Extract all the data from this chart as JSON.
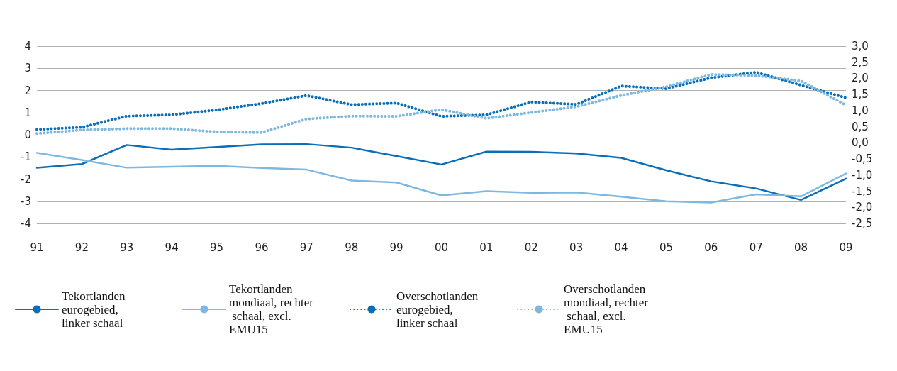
{
  "chart_data": {
    "type": "line",
    "categories": [
      "91",
      "92",
      "93",
      "94",
      "95",
      "96",
      "97",
      "98",
      "99",
      "00",
      "01",
      "02",
      "03",
      "04",
      "05",
      "06",
      "07",
      "08",
      "09"
    ],
    "series": [
      {
        "name": "Tekortlanden eurogebied, linker schaal",
        "color": "#0a6fb8",
        "line_style": "solid",
        "values": [
          -1.49,
          -1.32,
          -0.46,
          -0.67,
          -0.55,
          -0.43,
          -0.42,
          -0.58,
          -0.96,
          -1.34,
          -0.76,
          -0.77,
          -0.84,
          -1.04,
          -1.6,
          -2.1,
          -2.42,
          -2.94,
          -1.98
        ]
      },
      {
        "name": "Tekortlanden mondiaal, rechter schaal, excl. EMU15",
        "color": "#7db8e0",
        "line_style": "solid",
        "axis": "y2",
        "values": [
          -0.31,
          -0.53,
          -0.77,
          -0.74,
          -0.71,
          -0.78,
          -0.83,
          -1.17,
          -1.23,
          -1.63,
          -1.5,
          -1.55,
          -1.54,
          -1.67,
          -1.81,
          -1.85,
          -1.6,
          -1.66,
          -0.95
        ]
      },
      {
        "name": "Overschotlanden eurogebied, linker schaal",
        "color": "#0a6fb8",
        "line_style": "dotted",
        "values": [
          0.24,
          0.34,
          0.84,
          0.9,
          1.12,
          1.41,
          1.77,
          1.36,
          1.43,
          0.83,
          0.9,
          1.48,
          1.37,
          2.2,
          2.08,
          2.57,
          2.82,
          2.24,
          1.67
        ]
      },
      {
        "name": "Overschotlanden mondiaal, rechter schaal, excl. EMU15",
        "color": "#7db8e0",
        "line_style": "dotted",
        "axis": "y2",
        "values": [
          0.29,
          0.4,
          0.44,
          0.44,
          0.34,
          0.32,
          0.74,
          0.83,
          0.82,
          1.03,
          0.76,
          0.94,
          1.12,
          1.47,
          1.74,
          2.12,
          2.09,
          1.92,
          1.17
        ]
      }
    ],
    "ylim": [
      -4,
      4
    ],
    "yticks": [
      -4,
      -3,
      -2,
      -1,
      0,
      1,
      2,
      3,
      4
    ],
    "y2lim": [
      -2.5,
      3
    ],
    "y2ticks": [
      {
        "value": -2.5,
        "label": "-2,5"
      },
      {
        "value": -2,
        "label": "-2,0"
      },
      {
        "value": -1.5,
        "label": "-1,5"
      },
      {
        "value": -1,
        "label": "-1,0"
      },
      {
        "value": -0.5,
        "label": "-0,5"
      },
      {
        "value": 0,
        "label": "0,0"
      },
      {
        "value": 0.5,
        "label": "0,5"
      },
      {
        "value": 1,
        "label": "1,0"
      },
      {
        "value": 1.5,
        "label": "1,5"
      },
      {
        "value": 2,
        "label": "2,0"
      },
      {
        "value": 2.5,
        "label": "2,5"
      },
      {
        "value": 3,
        "label": "3,0"
      }
    ],
    "grid": "y",
    "legend": "bottom",
    "marker": "none"
  }
}
